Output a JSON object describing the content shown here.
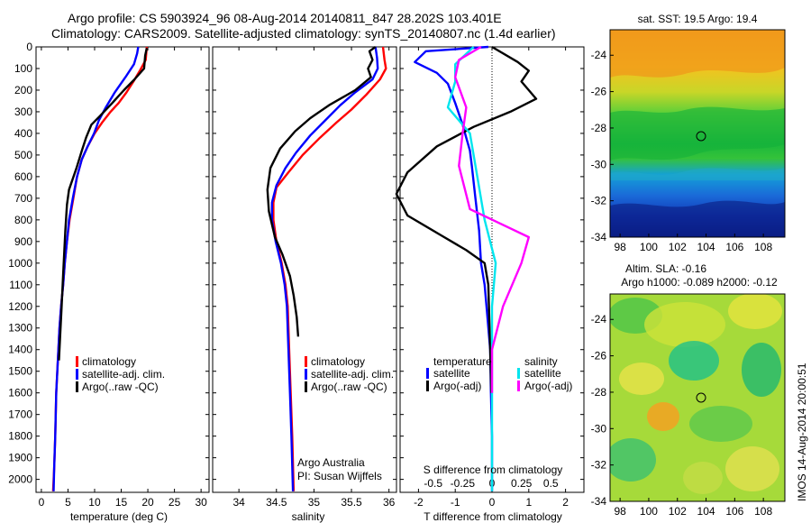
{
  "header": {
    "line1": "Argo profile: CS 5903924_96 08-Aug-2014 20140811_847 28.202S 103.401E",
    "line2": "Climatology: CARS2009. Satellite-adjusted climatology: synTS_20140807.nc (1.4d earlier)"
  },
  "colors": {
    "climatology": "#ff0000",
    "satellite": "#0000ff",
    "argo": "#000000",
    "sal_satellite": "#00e5ee",
    "sal_argo": "#ff00ff"
  },
  "depth_axis": {
    "ticks": [
      0,
      100,
      200,
      300,
      400,
      500,
      600,
      700,
      800,
      900,
      1000,
      1100,
      1200,
      1300,
      1400,
      1500,
      1600,
      1700,
      1800,
      1900,
      2000
    ],
    "range": [
      0,
      2060
    ],
    "inverted": true
  },
  "chart_data": [
    {
      "type": "line",
      "name": "temperature-profile",
      "xlabel": "temperature (deg C)",
      "xlim": [
        -1,
        31.5
      ],
      "xticks": [
        0,
        5,
        10,
        15,
        20,
        25,
        30
      ],
      "legend": [
        "climatology",
        "satellite-adj. clim.",
        "Argo(..raw -QC)"
      ],
      "series": [
        {
          "name": "climatology",
          "color": "climatology",
          "points": [
            [
              19.8,
              0
            ],
            [
              19.6,
              60
            ],
            [
              18.5,
              110
            ],
            [
              17.3,
              160
            ],
            [
              16.0,
              210
            ],
            [
              14.5,
              260
            ],
            [
              13.0,
              300
            ],
            [
              11.4,
              350
            ],
            [
              10.0,
              400
            ],
            [
              8.7,
              460
            ],
            [
              7.6,
              520
            ],
            [
              6.7,
              600
            ],
            [
              6.0,
              700
            ],
            [
              5.3,
              800
            ],
            [
              4.8,
              900
            ],
            [
              4.4,
              1000
            ],
            [
              4.1,
              1100
            ],
            [
              3.7,
              1200
            ],
            [
              3.4,
              1300
            ],
            [
              3.2,
              1400
            ],
            [
              3.0,
              1500
            ],
            [
              2.8,
              1600
            ],
            [
              2.6,
              1800
            ],
            [
              2.4,
              1950
            ],
            [
              2.2,
              2055
            ]
          ]
        },
        {
          "name": "satellite-adj. clim.",
          "color": "satellite",
          "points": [
            [
              18.2,
              0
            ],
            [
              18.0,
              30
            ],
            [
              17.4,
              80
            ],
            [
              15.8,
              140
            ],
            [
              13.8,
              210
            ],
            [
              12.1,
              280
            ],
            [
              10.8,
              340
            ],
            [
              9.9,
              400
            ],
            [
              8.7,
              460
            ],
            [
              7.6,
              520
            ],
            [
              6.7,
              600
            ],
            [
              5.9,
              700
            ],
            [
              5.2,
              800
            ],
            [
              4.8,
              900
            ],
            [
              4.4,
              1000
            ],
            [
              4.1,
              1100
            ],
            [
              3.7,
              1200
            ],
            [
              3.4,
              1300
            ],
            [
              3.2,
              1400
            ],
            [
              3.0,
              1500
            ],
            [
              2.8,
              1600
            ],
            [
              2.6,
              1800
            ],
            [
              2.4,
              1950
            ],
            [
              2.3,
              2055
            ]
          ]
        },
        {
          "name": "Argo(..raw -QC)",
          "color": "argo",
          "points": [
            [
              19.8,
              5
            ],
            [
              19.5,
              40
            ],
            [
              19.3,
              100
            ],
            [
              17.5,
              150
            ],
            [
              15.5,
              200
            ],
            [
              13.3,
              260
            ],
            [
              11.0,
              320
            ],
            [
              9.4,
              360
            ],
            [
              8.4,
              420
            ],
            [
              7.6,
              480
            ],
            [
              6.6,
              560
            ],
            [
              5.2,
              660
            ],
            [
              4.8,
              730
            ],
            [
              4.5,
              850
            ],
            [
              4.3,
              950
            ],
            [
              4.1,
              1050
            ],
            [
              3.8,
              1200
            ],
            [
              3.5,
              1350
            ],
            [
              3.3,
              1450
            ]
          ]
        }
      ]
    },
    {
      "type": "line",
      "name": "salinity-profile",
      "xlabel": "salinity",
      "xlim": [
        33.65,
        36.1
      ],
      "xticks": [
        34,
        34.5,
        35,
        35.5,
        36
      ],
      "xticklabels": [
        "34",
        "34.5",
        "35",
        "35.5",
        "36"
      ],
      "legend": [
        "climatology",
        "satellite-adj. clim.",
        "Argo(..raw -QC)"
      ],
      "series": [
        {
          "name": "climatology",
          "color": "climatology",
          "points": [
            [
              35.92,
              0
            ],
            [
              35.94,
              60
            ],
            [
              35.96,
              100
            ],
            [
              35.88,
              150
            ],
            [
              35.7,
              220
            ],
            [
              35.5,
              290
            ],
            [
              35.3,
              350
            ],
            [
              35.08,
              420
            ],
            [
              34.85,
              500
            ],
            [
              34.66,
              580
            ],
            [
              34.5,
              650
            ],
            [
              34.46,
              720
            ],
            [
              34.46,
              800
            ],
            [
              34.5,
              900
            ],
            [
              34.57,
              1000
            ],
            [
              34.62,
              1100
            ],
            [
              34.65,
              1200
            ],
            [
              34.67,
              1400
            ],
            [
              34.69,
              1600
            ],
            [
              34.71,
              1800
            ],
            [
              34.73,
              2055
            ]
          ]
        },
        {
          "name": "satellite-adj. clim.",
          "color": "satellite",
          "points": [
            [
              35.82,
              0
            ],
            [
              35.84,
              50
            ],
            [
              35.85,
              100
            ],
            [
              35.78,
              150
            ],
            [
              35.55,
              210
            ],
            [
              35.35,
              270
            ],
            [
              35.15,
              340
            ],
            [
              34.95,
              410
            ],
            [
              34.76,
              490
            ],
            [
              34.62,
              560
            ],
            [
              34.5,
              640
            ],
            [
              34.44,
              720
            ],
            [
              34.44,
              800
            ],
            [
              34.49,
              900
            ],
            [
              34.56,
              1000
            ],
            [
              34.61,
              1100
            ],
            [
              34.64,
              1200
            ],
            [
              34.66,
              1400
            ],
            [
              34.68,
              1600
            ],
            [
              34.7,
              1800
            ],
            [
              34.72,
              2055
            ]
          ]
        },
        {
          "name": "Argo(..raw -QC)",
          "color": "argo",
          "points": [
            [
              35.82,
              0
            ],
            [
              35.74,
              20
            ],
            [
              35.78,
              60
            ],
            [
              35.72,
              100
            ],
            [
              35.76,
              140
            ],
            [
              35.55,
              200
            ],
            [
              35.2,
              270
            ],
            [
              34.95,
              330
            ],
            [
              34.75,
              390
            ],
            [
              34.55,
              470
            ],
            [
              34.42,
              560
            ],
            [
              34.38,
              660
            ],
            [
              34.4,
              760
            ],
            [
              34.48,
              880
            ],
            [
              34.58,
              960
            ],
            [
              34.68,
              1060
            ],
            [
              34.73,
              1150
            ],
            [
              34.77,
              1250
            ],
            [
              34.79,
              1340
            ]
          ]
        }
      ]
    },
    {
      "type": "line",
      "name": "difference-from-climatology",
      "xlabel": "T difference from climatology",
      "xlabel_top": "S difference from climatology",
      "xlim": [
        -2.5,
        2.5
      ],
      "xticks": [
        -2,
        -1,
        0,
        1,
        2
      ],
      "xticklabels": [
        "-2",
        "-1",
        "0",
        "1",
        "2"
      ],
      "xticks_top": [
        -1.6,
        -0.8,
        0,
        0.8,
        1.6
      ],
      "xticklabels_top": [
        "-0.5",
        "-0.25",
        "0",
        "0.25",
        "0.5"
      ],
      "zero_line": "dotted",
      "legend": {
        "temperature": "temperature",
        "salinity": "salinity",
        "entries": [
          "satellite",
          "Argo(-adj)",
          "satellite",
          "Argo(-adj)"
        ]
      },
      "series": [
        {
          "name": "satellite",
          "group": "temperature",
          "color": "satellite",
          "points": [
            [
              -0.1,
              0
            ],
            [
              -1.8,
              20
            ],
            [
              -2.1,
              70
            ],
            [
              -1.5,
              120
            ],
            [
              -1.2,
              170
            ],
            [
              -1.0,
              260
            ],
            [
              -0.8,
              360
            ],
            [
              -0.7,
              420
            ],
            [
              -0.6,
              480
            ],
            [
              -0.55,
              550
            ],
            [
              -0.45,
              700
            ],
            [
              -0.35,
              850
            ],
            [
              -0.3,
              1000
            ],
            [
              -0.2,
              1100
            ],
            [
              -0.15,
              1200
            ],
            [
              -0.05,
              1400
            ],
            [
              -0.03,
              1600
            ],
            [
              0.0,
              1800
            ],
            [
              0.0,
              2055
            ]
          ]
        },
        {
          "name": "Argo(-adj)",
          "group": "temperature",
          "color": "argo",
          "points": [
            [
              0.0,
              0
            ],
            [
              0.7,
              70
            ],
            [
              1.0,
              110
            ],
            [
              0.8,
              160
            ],
            [
              1.2,
              240
            ],
            [
              0.5,
              300
            ],
            [
              -0.5,
              370
            ],
            [
              -1.5,
              460
            ],
            [
              -2.3,
              580
            ],
            [
              -2.6,
              680
            ],
            [
              -2.3,
              780
            ],
            [
              -1.4,
              870
            ],
            [
              -0.7,
              940
            ],
            [
              -0.2,
              1000
            ],
            [
              -0.1,
              1100
            ],
            [
              -0.05,
              1400
            ],
            [
              -0.02,
              1600
            ]
          ]
        },
        {
          "name": "satellite",
          "group": "salinity",
          "color": "sal_satellite",
          "points": [
            [
              -0.5,
              0
            ],
            [
              -1.0,
              80
            ],
            [
              -1.0,
              160
            ],
            [
              -1.2,
              280
            ],
            [
              -0.6,
              400
            ],
            [
              -0.4,
              600
            ],
            [
              -0.2,
              800
            ],
            [
              0.1,
              1000
            ],
            [
              0.0,
              1200
            ],
            [
              0.0,
              2055
            ]
          ]
        },
        {
          "name": "Argo(-adj)",
          "group": "salinity",
          "color": "sal_argo",
          "points": [
            [
              -0.3,
              0
            ],
            [
              -0.9,
              60
            ],
            [
              -1.0,
              140
            ],
            [
              -0.7,
              280
            ],
            [
              -0.8,
              400
            ],
            [
              -0.9,
              550
            ],
            [
              -0.6,
              750
            ],
            [
              1.0,
              880
            ],
            [
              0.8,
              1000
            ],
            [
              0.3,
              1200
            ],
            [
              0.0,
              1400
            ],
            [
              0.0,
              1600
            ]
          ]
        }
      ]
    },
    {
      "type": "heatmap",
      "name": "sst-map",
      "title": "sat. SST: 19.5  Argo: 19.4",
      "xlim": [
        97.3,
        109.5
      ],
      "ylim": [
        -34,
        -22.6
      ],
      "xticks": [
        98,
        100,
        102,
        104,
        106,
        108
      ],
      "yticks": [
        -24,
        -26,
        -28,
        -30,
        -32,
        -34
      ],
      "marker": {
        "lon": 103.401,
        "lat": -28.202
      }
    },
    {
      "type": "heatmap",
      "name": "sla-map",
      "title_line1": "Altim. SLA: -0.16",
      "title_line2": "Argo h1000: -0.089 h2000: -0.12",
      "xlim": [
        97.3,
        109.5
      ],
      "ylim": [
        -34,
        -22.6
      ],
      "xticks": [
        98,
        100,
        102,
        104,
        106,
        108
      ],
      "yticks": [
        -24,
        -26,
        -28,
        -30,
        -32,
        -34
      ],
      "marker": {
        "lon": 103.401,
        "lat": -28.202
      }
    }
  ],
  "footer": {
    "credit_line1": "Argo Australia",
    "credit_line2": "PI: Susan Wijffels",
    "timestamp": "IMOS 14-Aug-2014 20:00:51"
  }
}
